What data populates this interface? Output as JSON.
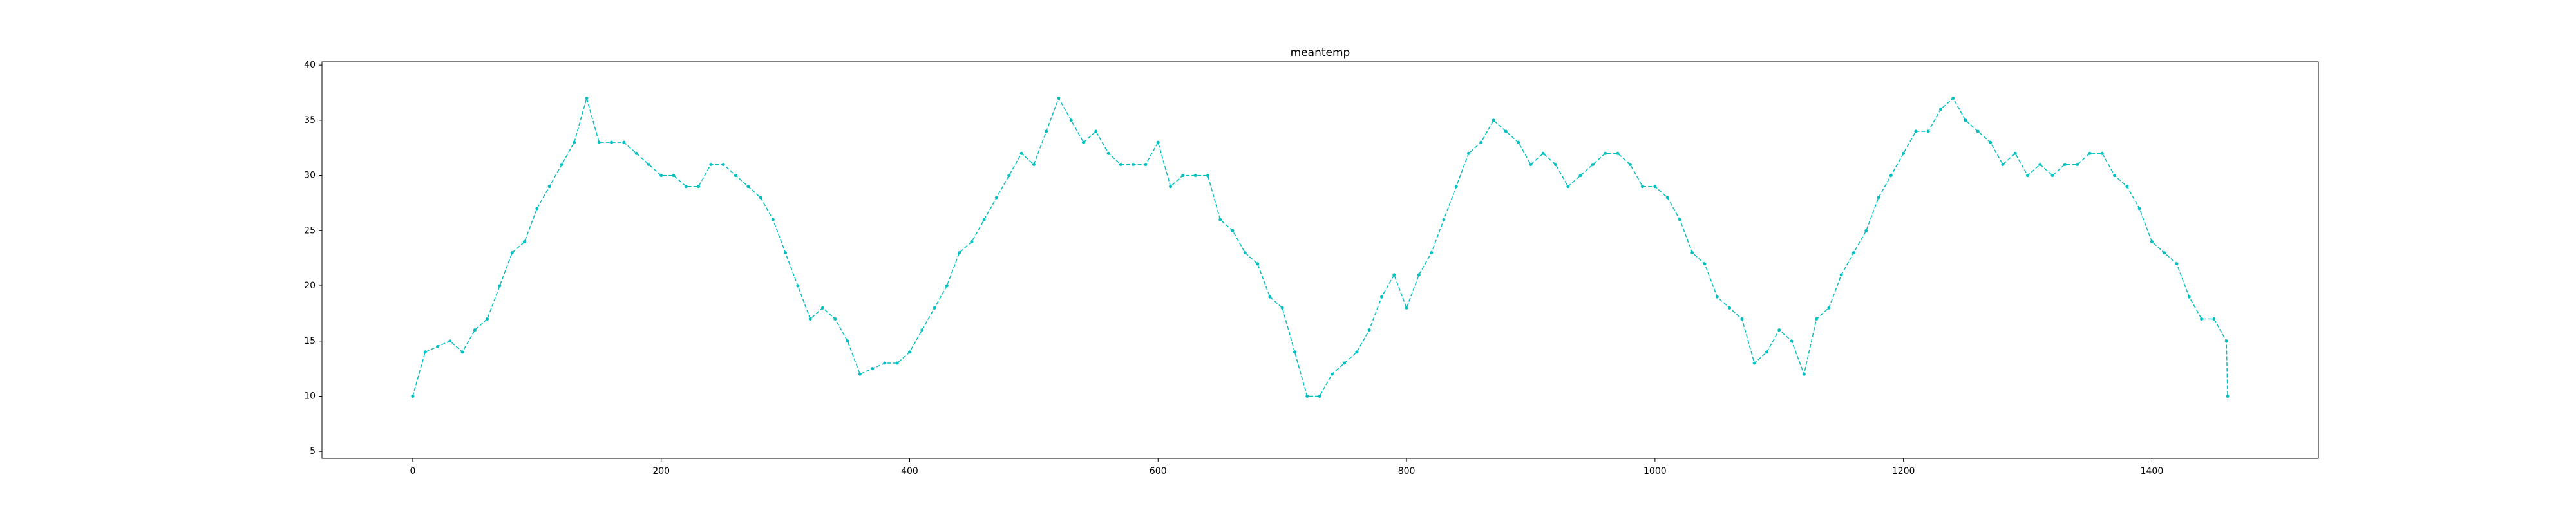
{
  "chart_data": {
    "type": "line",
    "title": "meantemp",
    "x": [
      0,
      10,
      20,
      30,
      40,
      50,
      60,
      70,
      80,
      90,
      100,
      110,
      120,
      130,
      140,
      150,
      160,
      170,
      180,
      190,
      200,
      210,
      220,
      230,
      240,
      250,
      260,
      270,
      280,
      290,
      300,
      310,
      320,
      330,
      340,
      350,
      360,
      370,
      380,
      390,
      400,
      410,
      420,
      430,
      440,
      450,
      460,
      470,
      480,
      490,
      500,
      510,
      520,
      530,
      540,
      550,
      560,
      570,
      580,
      590,
      600,
      610,
      620,
      630,
      640,
      650,
      660,
      670,
      680,
      690,
      700,
      710,
      720,
      730,
      740,
      750,
      760,
      770,
      780,
      790,
      800,
      810,
      820,
      830,
      840,
      850,
      860,
      870,
      880,
      890,
      900,
      910,
      920,
      930,
      940,
      950,
      960,
      970,
      980,
      990,
      1000,
      1010,
      1020,
      1030,
      1040,
      1050,
      1060,
      1070,
      1080,
      1090,
      1100,
      1110,
      1120,
      1130,
      1140,
      1150,
      1160,
      1170,
      1180,
      1190,
      1200,
      1210,
      1220,
      1230,
      1240,
      1250,
      1260,
      1270,
      1280,
      1290,
      1300,
      1310,
      1320,
      1330,
      1340,
      1350,
      1360,
      1370,
      1380,
      1390,
      1400,
      1410,
      1420,
      1430,
      1440,
      1450,
      1460,
      1461
    ],
    "series": [
      {
        "color": "#00bfbf",
        "values": [
          10,
          14,
          14.5,
          15,
          14,
          16,
          17,
          20,
          23,
          24,
          27,
          29,
          31,
          33,
          37,
          33,
          33,
          33,
          32,
          31,
          30,
          30,
          29,
          29,
          31,
          31,
          30,
          29,
          28,
          26,
          23,
          20,
          17,
          18,
          17,
          15,
          12,
          12.5,
          13,
          13,
          14,
          16,
          18,
          20,
          23,
          24,
          26,
          28,
          30,
          32,
          31,
          34,
          37,
          35,
          33,
          34,
          32,
          31,
          31,
          31,
          33,
          29,
          30,
          30,
          30,
          26,
          25,
          23,
          22,
          19,
          18,
          14,
          10,
          10,
          12,
          13,
          14,
          16,
          19,
          21,
          18,
          21,
          23,
          26,
          29,
          32,
          33,
          35,
          34,
          33,
          31,
          32,
          31,
          29,
          30,
          31,
          32,
          32,
          31,
          29,
          29,
          28,
          26,
          23,
          22,
          19,
          18,
          17,
          13,
          14,
          16,
          15,
          12,
          17,
          18,
          21,
          23,
          25,
          28,
          30,
          32,
          34,
          34,
          36,
          37,
          35,
          34,
          33,
          31,
          32,
          30,
          31,
          30,
          31,
          31,
          32,
          32,
          30,
          29,
          27,
          24,
          23,
          22,
          19,
          17,
          17,
          15,
          10
        ]
      }
    ],
    "xlim": [
      -73.05,
      1534.05
    ],
    "ylim": [
      4.37,
      40.3
    ],
    "xticks": [
      0,
      200,
      400,
      600,
      800,
      1000,
      1200,
      1400
    ],
    "yticks": [
      5,
      10,
      15,
      20,
      25,
      30,
      35,
      40
    ]
  }
}
